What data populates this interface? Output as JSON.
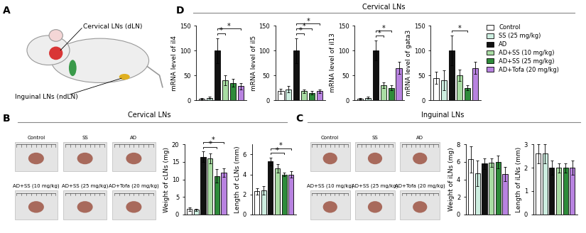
{
  "panel_labels": [
    "A",
    "B",
    "C",
    "D"
  ],
  "diagram": {
    "labels": [
      "Cervical LNs (dLN)",
      "Inguinal LNs (ndLN)"
    ]
  },
  "section_titles": [
    "Cervical LNs",
    "Cervical LNs",
    "Inguinal LNs"
  ],
  "photos": [
    [
      "Control",
      "SS",
      "AD",
      "AD+SS (10 mg/kg)",
      "AD+SS (25 mg/kg)",
      "AD+Tofa (20 mg/kg)"
    ],
    [
      "Control",
      "SS",
      "AD",
      "AD+SS (10 mg/kg)",
      "AD+SS (25 mg/kg)",
      "AD+Tofa (20 mg/kg)"
    ]
  ],
  "chart_data": [
    {
      "type": "bar",
      "y_label": "mRNA level of il4",
      "categories": [
        "Control",
        "SS (25 mg/kg)",
        "AD",
        "AD+SS (10 mg/kg)",
        "AD+SS (25 mg/kg)",
        "AD+Tofa (20 mg/kg)"
      ],
      "colors": [
        "#ffffff",
        "#cdeee0",
        "#111111",
        "#a9dca3",
        "#2e8b3a",
        "#b883e0"
      ],
      "values": [
        3,
        5,
        100,
        40,
        35,
        28
      ],
      "errors": [
        1,
        2,
        25,
        10,
        8,
        6
      ],
      "ylim": [
        0,
        150
      ],
      "yticks": [
        0,
        50,
        100,
        150
      ],
      "tick_labels": "y",
      "significance": [
        {
          "from": 2,
          "to": 3,
          "label": "*"
        },
        {
          "from": 2,
          "to": 5,
          "label": "*"
        }
      ]
    },
    {
      "type": "bar",
      "y_label": "mRNA level of il5",
      "categories": [
        "Control",
        "SS (25 mg/kg)",
        "AD",
        "AD+SS (10 mg/kg)",
        "AD+SS (25 mg/kg)",
        "AD+Tofa (20 mg/kg)"
      ],
      "colors": [
        "#ffffff",
        "#cdeee0",
        "#111111",
        "#a9dca3",
        "#2e8b3a",
        "#b883e0"
      ],
      "values": [
        18,
        22,
        100,
        18,
        15,
        18
      ],
      "errors": [
        5,
        6,
        25,
        4,
        4,
        4
      ],
      "ylim": [
        0,
        150
      ],
      "yticks": [
        0,
        50,
        100,
        150
      ],
      "tick_labels": "y",
      "significance": [
        {
          "from": 2,
          "to": 3,
          "label": "*"
        },
        {
          "from": 2,
          "to": 4,
          "label": "*"
        },
        {
          "from": 2,
          "to": 5,
          "label": "*"
        }
      ]
    },
    {
      "type": "bar",
      "y_label": "mRNA level of il13",
      "categories": [
        "Control",
        "SS (25 mg/kg)",
        "AD",
        "AD+SS (10 mg/kg)",
        "AD+SS (25 mg/kg)",
        "AD+Tofa (20 mg/kg)"
      ],
      "colors": [
        "#ffffff",
        "#cdeee0",
        "#111111",
        "#a9dca3",
        "#2e8b3a",
        "#b883e0"
      ],
      "values": [
        3,
        5,
        100,
        30,
        25,
        65
      ],
      "errors": [
        1,
        2,
        20,
        6,
        5,
        12
      ],
      "ylim": [
        0,
        150
      ],
      "yticks": [
        0,
        50,
        100,
        150
      ],
      "tick_labels": "y",
      "significance": [
        {
          "from": 2,
          "to": 3,
          "label": "*"
        },
        {
          "from": 2,
          "to": 4,
          "label": "*"
        }
      ]
    },
    {
      "type": "bar",
      "y_label": "mRNA level of gata3",
      "categories": [
        "Control",
        "SS (25 mg/kg)",
        "AD",
        "AD+SS (10 mg/kg)",
        "AD+SS (25 mg/kg)",
        "AD+Tofa (20 mg/kg)"
      ],
      "colors": [
        "#ffffff",
        "#cdeee0",
        "#111111",
        "#a9dca3",
        "#2e8b3a",
        "#b883e0"
      ],
      "values": [
        45,
        40,
        100,
        50,
        25,
        65
      ],
      "errors": [
        12,
        20,
        30,
        12,
        5,
        12
      ],
      "ylim": [
        0,
        150
      ],
      "yticks": [
        0,
        50,
        100,
        150
      ],
      "tick_labels": "y",
      "legend": "upper left",
      "significance": [
        {
          "from": 2,
          "to": 4,
          "label": "*"
        }
      ]
    },
    {
      "type": "bar",
      "y_label": "Weight of cLNs (mg)",
      "categories": [
        "Control",
        "SS (25 mg/kg)",
        "AD",
        "AD+SS (10 mg/kg)",
        "AD+SS (25 mg/kg)",
        "AD+Tofa (20 mg/kg)"
      ],
      "colors": [
        "#ffffff",
        "#cdeee0",
        "#111111",
        "#a9dca3",
        "#2e8b3a",
        "#b883e0"
      ],
      "values": [
        1.5,
        1.3,
        16.5,
        16,
        11,
        12
      ],
      "errors": [
        0.5,
        0.3,
        1.5,
        1.5,
        2,
        1.2
      ],
      "ylim": [
        0,
        20
      ],
      "yticks": [
        0,
        5,
        10,
        15,
        20
      ],
      "tick_labels": "y",
      "significance": [
        {
          "from": 2,
          "to": 4,
          "label": "*"
        },
        {
          "from": 2,
          "to": 5,
          "label": "*"
        }
      ]
    },
    {
      "type": "bar",
      "y_label": "Length of cLNs (mm)",
      "categories": [
        "Control",
        "SS (25 mg/kg)",
        "AD",
        "AD+SS (10 mg/kg)",
        "AD+SS (25 mg/kg)",
        "AD+Tofa (20 mg/kg)"
      ],
      "colors": [
        "#ffffff",
        "#cdeee0",
        "#111111",
        "#a9dca3",
        "#2e8b3a",
        "#b883e0"
      ],
      "values": [
        2.3,
        2.4,
        5.3,
        4.6,
        4.0,
        4.0
      ],
      "errors": [
        0.3,
        0.4,
        0.4,
        0.4,
        0.2,
        0.3
      ],
      "ylim": [
        0,
        7
      ],
      "yticks": [
        0,
        2,
        4,
        6
      ],
      "tick_labels": "y",
      "significance": [
        {
          "from": 2,
          "to": 4,
          "label": "*"
        },
        {
          "from": 2,
          "to": 5,
          "label": "*"
        }
      ]
    },
    {
      "type": "bar",
      "y_label": "Weight of iLNs (mg)",
      "categories": [
        "Control",
        "SS (25 mg/kg)",
        "AD",
        "AD+SS (10 mg/kg)",
        "AD+SS (25 mg/kg)",
        "AD+Tofa (20 mg/kg)"
      ],
      "colors": [
        "#ffffff",
        "#cdeee0",
        "#111111",
        "#a9dca3",
        "#2e8b3a",
        "#b883e0"
      ],
      "values": [
        6.3,
        4.7,
        5.8,
        5.9,
        6.0,
        4.6
      ],
      "errors": [
        1.5,
        1.5,
        0.6,
        0.5,
        0.7,
        0.8
      ],
      "ylim": [
        0,
        8
      ],
      "yticks": [
        0,
        2,
        4,
        6,
        8
      ],
      "tick_labels": "y",
      "significance": []
    },
    {
      "type": "bar",
      "y_label": "Length of iLNs (mm)",
      "categories": [
        "Control",
        "SS (25 mg/kg)",
        "AD",
        "AD+SS (10 mg/kg)",
        "AD+SS (25 mg/kg)",
        "AD+Tofa (20 mg/kg)"
      ],
      "colors": [
        "#ffffff",
        "#cdeee0",
        "#111111",
        "#a9dca3",
        "#2e8b3a",
        "#b883e0"
      ],
      "values": [
        2.6,
        2.6,
        2.0,
        2.0,
        2.0,
        2.0
      ],
      "errors": [
        0.4,
        0.4,
        0.3,
        0.2,
        0.2,
        0.3
      ],
      "ylim": [
        0,
        3
      ],
      "yticks": [
        0,
        1,
        2,
        3
      ],
      "tick_labels": "y",
      "significance": []
    }
  ]
}
